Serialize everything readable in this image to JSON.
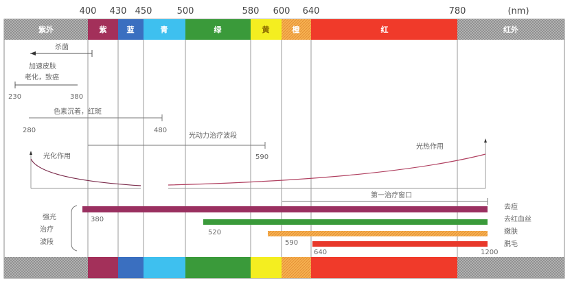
{
  "unit": "(nm)",
  "ticks": [
    "400",
    "430",
    "450",
    "500",
    "580",
    "600",
    "640",
    "780"
  ],
  "bands": [
    {
      "label": "紫外",
      "color": "#aaaaaa"
    },
    {
      "label": "紫",
      "color": "#a3305a"
    },
    {
      "label": "蓝",
      "color": "#3a6fc0"
    },
    {
      "label": "青",
      "color": "#3ec0ef"
    },
    {
      "label": "绿",
      "color": "#3a9a3a"
    },
    {
      "label": "黄",
      "color": "#f4ee20"
    },
    {
      "label": "橙",
      "color": "#f0a040"
    },
    {
      "label": "红",
      "color": "#f03a2a"
    },
    {
      "label": "红外",
      "color": "#aaaaaa"
    }
  ],
  "effects": {
    "sterilize": "杀菌",
    "aging_line1": "加速皮肤",
    "aging_line2": "老化，致癌",
    "aging_start": "230",
    "aging_end": "380",
    "pigment": "色素沉着，红斑",
    "pigment_start": "280",
    "pigment_end": "480",
    "pdt": "光动力治疗波段",
    "pdt_end": "590",
    "photochem": "光化作用",
    "photothermal": "光热作用",
    "window": "第一治疗窗口"
  },
  "ipl": {
    "label_lines": [
      "强光",
      "治疗",
      "波段"
    ],
    "bars": [
      {
        "start": "380",
        "end": "1200",
        "name": "去痘",
        "color": "#9a3060"
      },
      {
        "start": "520",
        "end": "1200",
        "name": "去红血丝",
        "color": "#3a9a3a"
      },
      {
        "start": "590",
        "end": "1200",
        "name": "嫩肤",
        "color": "#f0a040"
      },
      {
        "start": "640",
        "end": "1200",
        "name": "脱毛",
        "color": "#e8382a"
      }
    ],
    "end_label": "1200"
  }
}
